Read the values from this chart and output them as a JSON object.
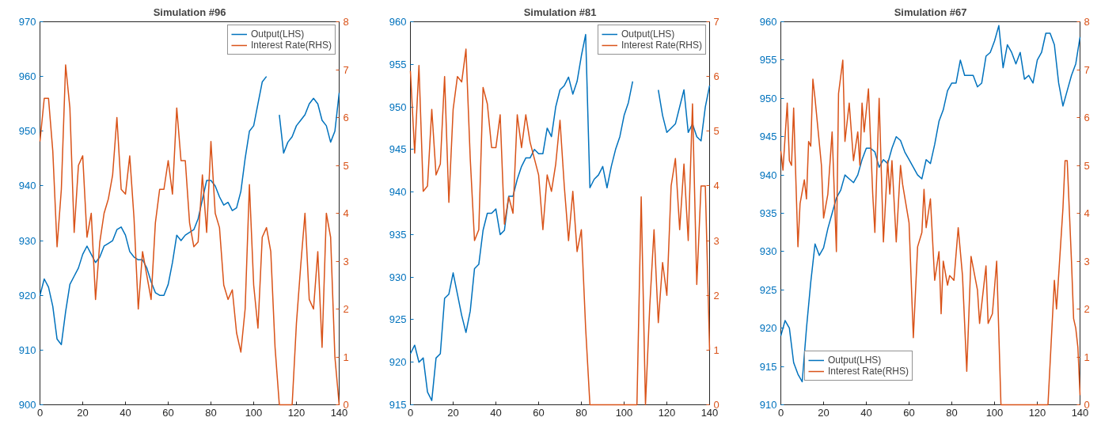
{
  "chart_data": [
    {
      "type": "line",
      "title": "Simulation #96",
      "xlim": [
        0,
        140
      ],
      "xticks": [
        0,
        20,
        40,
        60,
        80,
        100,
        120,
        140
      ],
      "ylim": [
        900,
        970
      ],
      "yticks": [
        900,
        910,
        920,
        930,
        940,
        950,
        960,
        970
      ],
      "y2lim": [
        0,
        8
      ],
      "y2ticks": [
        0,
        1,
        2,
        3,
        4,
        5,
        6,
        7,
        8
      ],
      "legend": "top right",
      "series": [
        {
          "name": "Output(LHS)",
          "color": "#0072bd",
          "x": [
            0,
            2,
            4,
            6,
            8,
            10,
            12,
            14,
            16,
            18,
            20,
            22,
            24,
            26,
            28,
            30,
            32,
            34,
            36,
            38,
            40,
            42,
            44,
            46,
            48,
            50,
            52,
            54,
            56,
            58,
            60,
            62,
            64,
            66,
            68,
            70,
            72,
            74,
            76,
            78,
            80,
            82,
            84,
            86,
            88,
            90,
            92,
            94,
            96,
            98,
            100,
            102,
            104,
            106,
            108,
            110,
            112,
            114,
            116,
            118,
            120,
            122,
            124,
            126,
            128,
            130,
            132,
            134,
            136,
            138,
            140
          ],
          "values": [
            920,
            923,
            921.5,
            918,
            912,
            911,
            917,
            922,
            923.5,
            925,
            927.5,
            929,
            927.5,
            926,
            927,
            929,
            929.5,
            930,
            932,
            932.5,
            931,
            928,
            927,
            926.5,
            926.5,
            925,
            922.5,
            920.5,
            920,
            920,
            922,
            926,
            931,
            930,
            931,
            931.5,
            932,
            934,
            937.5,
            941,
            941,
            940,
            938,
            936.5,
            937,
            935.5,
            936,
            939,
            945,
            950,
            951,
            955,
            959,
            960,
            null,
            null,
            953,
            946,
            948,
            949,
            951,
            952,
            953,
            955,
            956,
            955,
            952,
            951,
            948,
            950,
            957
          ]
        },
        {
          "name": "Interest Rate(RHS)",
          "color": "#d95319",
          "axis": "y2",
          "x": [
            0,
            2,
            4,
            6,
            8,
            10,
            12,
            14,
            16,
            18,
            20,
            22,
            24,
            26,
            28,
            30,
            32,
            34,
            36,
            38,
            40,
            42,
            44,
            46,
            48,
            50,
            52,
            54,
            56,
            58,
            60,
            62,
            64,
            66,
            68,
            70,
            72,
            74,
            76,
            78,
            80,
            82,
            84,
            86,
            88,
            90,
            92,
            94,
            96,
            98,
            100,
            102,
            104,
            106,
            108,
            110,
            112,
            114,
            116,
            118,
            120,
            122,
            124,
            126,
            128,
            130,
            132,
            134,
            136,
            138,
            140
          ],
          "values": [
            5.5,
            6.4,
            6.4,
            5.3,
            3.3,
            4.5,
            7.1,
            6.2,
            3.6,
            5,
            5.2,
            3.5,
            4,
            2.2,
            3.4,
            4,
            4.3,
            4.8,
            6,
            4.5,
            4.4,
            5.2,
            3.9,
            2,
            3.2,
            2.7,
            2.2,
            3.8,
            4.5,
            4.5,
            5.1,
            4.4,
            6.2,
            5.1,
            5.1,
            3.8,
            3.3,
            3.4,
            4.8,
            3.6,
            5.5,
            4,
            3.7,
            2.5,
            2.2,
            2.4,
            1.5,
            1.1,
            2,
            4.6,
            2.5,
            1.6,
            3.5,
            3.7,
            3.2,
            1.2,
            0,
            0,
            0,
            0,
            1.7,
            2.9,
            4,
            2.2,
            2,
            3.2,
            1.2,
            4,
            3.5,
            1,
            0
          ]
        }
      ]
    },
    {
      "type": "line",
      "title": "Simulation #81",
      "xlim": [
        0,
        140
      ],
      "xticks": [
        0,
        20,
        40,
        60,
        80,
        100,
        120,
        140
      ],
      "ylim": [
        915,
        960
      ],
      "yticks": [
        915,
        920,
        925,
        930,
        935,
        940,
        945,
        950,
        955,
        960
      ],
      "y2lim": [
        0,
        7
      ],
      "y2ticks": [
        0,
        1,
        2,
        3,
        4,
        5,
        6,
        7
      ],
      "legend": "top right",
      "series": [
        {
          "name": "Output(LHS)",
          "color": "#0072bd",
          "x": [
            0,
            2,
            4,
            6,
            8,
            10,
            12,
            14,
            16,
            18,
            20,
            22,
            24,
            26,
            28,
            30,
            32,
            34,
            36,
            38,
            40,
            42,
            44,
            46,
            48,
            50,
            52,
            54,
            56,
            58,
            60,
            62,
            64,
            66,
            68,
            70,
            72,
            74,
            76,
            78,
            80,
            82,
            84,
            86,
            88,
            90,
            92,
            94,
            96,
            98,
            100,
            102,
            104,
            106,
            108,
            110,
            112,
            114,
            116,
            118,
            120,
            122,
            124,
            126,
            128,
            130,
            132,
            134,
            136,
            138,
            140
          ],
          "values": [
            921,
            922,
            920,
            920.5,
            916.5,
            915.5,
            920.5,
            921,
            927.5,
            928,
            930.5,
            928,
            925.5,
            923.5,
            926,
            931,
            931.5,
            935.5,
            937.5,
            937.5,
            938,
            935,
            935.5,
            939.5,
            939.5,
            941.5,
            943,
            944,
            944,
            945,
            944.5,
            944.5,
            947.5,
            946.5,
            950,
            952,
            952.5,
            953.5,
            951.5,
            953,
            956,
            958.5,
            940.5,
            941.5,
            942,
            943,
            940.5,
            943,
            945,
            946.5,
            949,
            950.5,
            953,
            null,
            null,
            null,
            null,
            null,
            952,
            949,
            947,
            947.5,
            948,
            950,
            952,
            947,
            948,
            946.5,
            946,
            950,
            952.5
          ]
        },
        {
          "name": "Interest Rate(RHS)",
          "color": "#d95319",
          "axis": "y2",
          "x": [
            0,
            2,
            4,
            6,
            8,
            10,
            12,
            14,
            16,
            18,
            20,
            22,
            24,
            26,
            28,
            30,
            32,
            34,
            36,
            38,
            40,
            42,
            44,
            46,
            48,
            50,
            52,
            54,
            56,
            58,
            60,
            62,
            64,
            66,
            68,
            70,
            72,
            74,
            76,
            78,
            80,
            82,
            84,
            86,
            88,
            90,
            92,
            94,
            96,
            98,
            100,
            102,
            104,
            106,
            108,
            110,
            112,
            114,
            116,
            118,
            120,
            122,
            124,
            126,
            128,
            130,
            132,
            134,
            136,
            138,
            140
          ],
          "values": [
            6.1,
            4.6,
            6.2,
            3.9,
            4,
            5.4,
            4.2,
            4.4,
            6,
            3.7,
            5.4,
            6,
            5.9,
            6.5,
            4.5,
            3,
            3.2,
            5.8,
            5.5,
            4.7,
            4.7,
            5.3,
            3.3,
            3.8,
            3.5,
            5.3,
            4.7,
            5.3,
            4.8,
            4.5,
            4.2,
            3.2,
            4.2,
            3.9,
            4.4,
            5.2,
            4,
            3,
            3.9,
            2.8,
            3.2,
            1.4,
            0,
            0,
            0,
            0,
            0,
            0,
            0,
            0,
            0,
            0,
            0,
            0,
            3.8,
            0,
            1.8,
            3.2,
            1.5,
            2.6,
            2,
            4,
            4.5,
            3.2,
            4.4,
            3,
            5.5,
            2.2,
            4,
            4,
            1
          ]
        }
      ]
    },
    {
      "type": "line",
      "title": "Simulation #67",
      "xlim": [
        0,
        140
      ],
      "xticks": [
        0,
        20,
        40,
        60,
        80,
        100,
        120,
        140
      ],
      "ylim": [
        910,
        960
      ],
      "yticks": [
        910,
        915,
        920,
        925,
        930,
        935,
        940,
        945,
        950,
        955,
        960
      ],
      "y2lim": [
        0,
        8
      ],
      "y2ticks": [
        0,
        1,
        2,
        3,
        4,
        5,
        6,
        7,
        8
      ],
      "legend": "bottom left",
      "series": [
        {
          "name": "Output(LHS)",
          "color": "#0072bd",
          "x": [
            0,
            2,
            4,
            6,
            8,
            10,
            12,
            14,
            16,
            18,
            20,
            22,
            24,
            26,
            28,
            30,
            32,
            34,
            36,
            38,
            40,
            42,
            44,
            46,
            48,
            50,
            52,
            54,
            56,
            58,
            60,
            62,
            64,
            66,
            68,
            70,
            72,
            74,
            76,
            78,
            80,
            82,
            84,
            86,
            88,
            90,
            92,
            94,
            96,
            98,
            100,
            102,
            104,
            106,
            108,
            110,
            112,
            114,
            116,
            118,
            120,
            122,
            124,
            126,
            128,
            130,
            132,
            134,
            136,
            138,
            140
          ],
          "values": [
            919,
            921,
            920,
            915.5,
            914,
            913,
            920,
            926,
            931,
            929.5,
            930.5,
            933,
            935,
            937,
            938,
            940,
            939.5,
            939,
            940,
            942,
            943.5,
            943.5,
            943,
            941,
            942,
            941.5,
            943.5,
            945,
            944.5,
            943,
            942,
            941,
            940,
            939.5,
            942,
            941.5,
            944,
            947,
            948.5,
            951,
            952,
            952,
            955,
            953,
            953,
            953,
            951.5,
            952,
            955.5,
            956,
            957.5,
            959.5,
            954,
            957,
            956,
            954.5,
            956,
            952.5,
            953,
            952,
            955,
            956,
            958.5,
            958.5,
            957,
            952,
            949,
            951,
            953,
            954.5,
            958
          ]
        },
        {
          "name": "Interest Rate(RHS)",
          "color": "#d95319",
          "axis": "y2",
          "x": [
            0,
            1,
            3,
            4,
            5,
            6,
            8,
            9,
            11,
            12,
            13,
            14,
            15,
            16,
            19,
            20,
            22,
            24,
            26,
            27,
            29,
            30,
            32,
            34,
            36,
            37,
            38,
            39,
            41,
            43,
            44,
            46,
            48,
            50,
            51,
            52,
            54,
            56,
            57,
            60,
            62,
            64,
            66,
            67,
            68,
            70,
            72,
            74,
            75,
            76,
            78,
            79,
            81,
            83,
            85,
            87,
            89,
            92,
            93,
            96,
            97,
            99,
            101,
            103,
            125,
            128,
            129,
            131,
            132,
            133,
            134,
            136,
            137,
            138,
            139,
            140
          ],
          "values": [
            5.3,
            4.9,
            6.3,
            5.1,
            5,
            6.2,
            3.3,
            4.2,
            4.7,
            4.3,
            5.5,
            5.4,
            6.8,
            6.4,
            5,
            3.9,
            4.4,
            5.7,
            3.2,
            6.5,
            7.2,
            5.5,
            6.3,
            5.1,
            5.7,
            5,
            6.3,
            5.7,
            6.6,
            4.4,
            3.6,
            6.4,
            3.4,
            5.1,
            4.4,
            5.1,
            3.4,
            5,
            4.6,
            3.8,
            1.4,
            3.3,
            3.6,
            4.5,
            3.7,
            4.3,
            2.6,
            3.2,
            1.9,
            3,
            2.5,
            2.7,
            2.6,
            3.7,
            2.7,
            0.7,
            3.1,
            2.4,
            1.7,
            2.9,
            1.7,
            1.9,
            3,
            0,
            0,
            2.6,
            2,
            3.4,
            4.1,
            5.1,
            5.1,
            3,
            1.8,
            1.6,
            1.2,
            0.2
          ]
        }
      ]
    }
  ]
}
